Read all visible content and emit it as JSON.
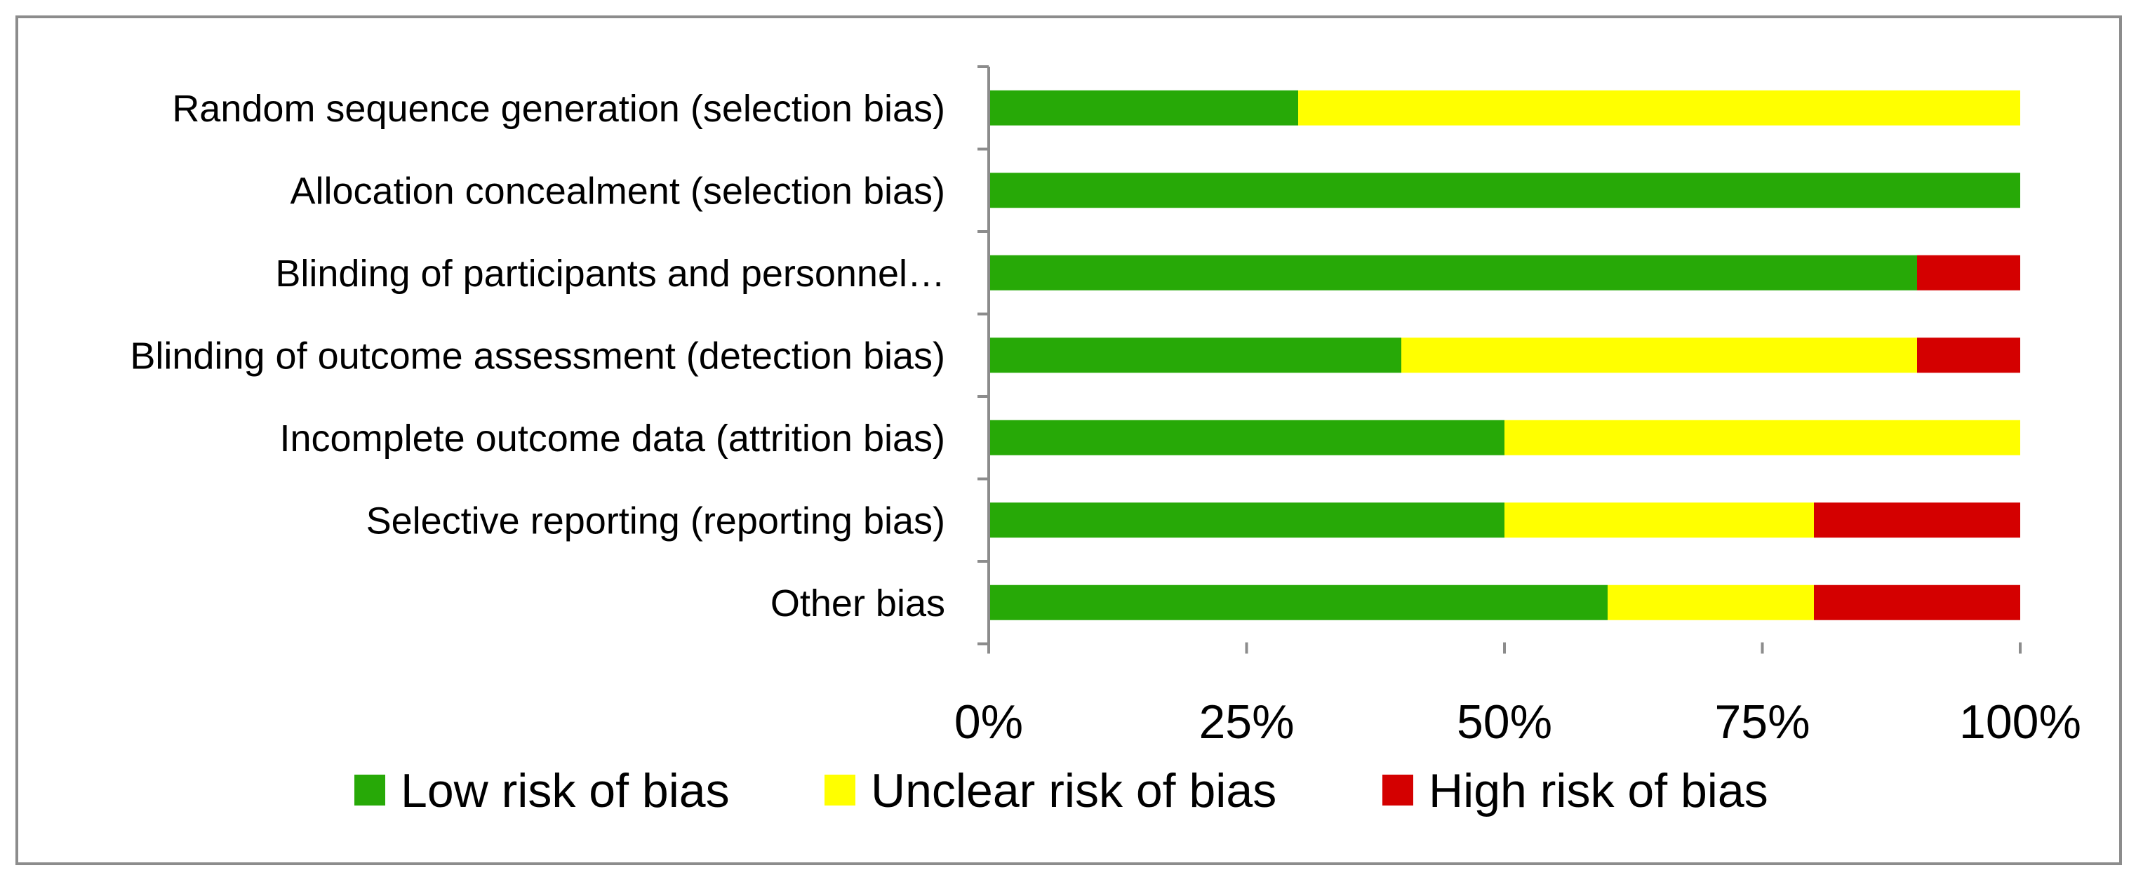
{
  "chart_data": {
    "type": "bar",
    "orientation": "horizontal",
    "stacked": true,
    "title": "",
    "xlabel": "",
    "ylabel": "",
    "xlim": [
      0,
      100
    ],
    "x_ticks": [
      "0%",
      "25%",
      "50%",
      "75%",
      "100%"
    ],
    "x_tick_values": [
      0,
      25,
      50,
      75,
      100
    ],
    "grid": false,
    "legend_position": "bottom",
    "categories": [
      "Random sequence generation (selection bias)",
      "Allocation concealment (selection bias)",
      "Blinding of participants and personnel…",
      "Blinding of outcome assessment (detection bias)",
      "Incomplete outcome data (attrition bias)",
      "Selective reporting (reporting bias)",
      "Other bias"
    ],
    "series": [
      {
        "name": "Low risk of bias",
        "color": "#27a907",
        "values": [
          30,
          100,
          90,
          40,
          50,
          50,
          60
        ]
      },
      {
        "name": "Unclear risk of bias",
        "color": "#ffff00",
        "values": [
          70,
          0,
          0,
          50,
          50,
          30,
          20
        ]
      },
      {
        "name": "High risk of bias",
        "color": "#d40000",
        "values": [
          0,
          0,
          10,
          10,
          0,
          20,
          20
        ]
      }
    ]
  },
  "colors": {
    "axis": "#8c8c8c",
    "frame": "#8c8c8c"
  }
}
